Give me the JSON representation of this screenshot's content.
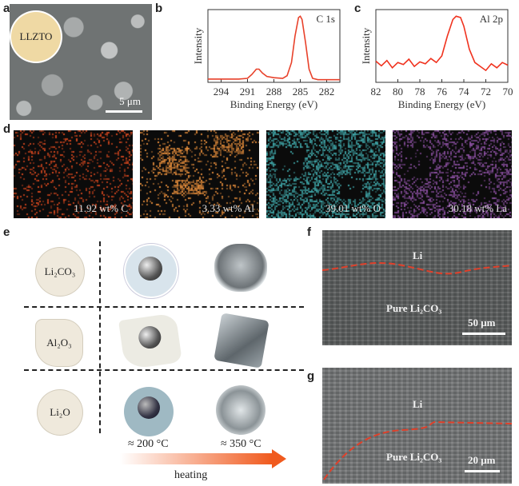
{
  "panels": {
    "a": {
      "label": "a",
      "badge": "LLZTO",
      "scale_bar": "5 μm"
    },
    "b": {
      "label": "b"
    },
    "c": {
      "label": "c"
    },
    "d": {
      "label": "d",
      "maps": [
        {
          "text": "11.92 wt% C",
          "color": "#d2461e"
        },
        {
          "text": "3.33 wt% Al",
          "color": "#e08a3a"
        },
        {
          "text": "39.01 wt% O",
          "color": "#3fa6a8"
        },
        {
          "text": "30.18 wt% La",
          "color": "#8a4fa0"
        }
      ]
    },
    "e": {
      "label": "e",
      "rows": [
        "Li₂CO₃",
        "Al₂O₃",
        "Li₂O"
      ],
      "temp_low": "≈ 200 °C",
      "temp_high": "≈ 350 °C",
      "arrow_label": "heating",
      "arrow_color": "#f05a1e"
    },
    "f": {
      "label": "f",
      "top_label": "Li",
      "bottom_label": "Pure Li₂CO₃",
      "scale_bar": "50 μm"
    },
    "g": {
      "label": "g",
      "top_label": "Li",
      "bottom_label": "Pure Li₂CO₃",
      "scale_bar": "20 μm"
    }
  },
  "chart_data": [
    {
      "type": "line",
      "panel": "b",
      "annotation": "C 1s",
      "xlabel": "Binding Energy (eV)",
      "ylabel": "Intensity",
      "xlim": [
        295.5,
        280.5
      ],
      "ylim": [
        0,
        1.1
      ],
      "xticks": [
        294,
        291,
        288,
        285,
        282
      ],
      "line_color": "#e8412a",
      "x": [
        295.5,
        292,
        291,
        290.5,
        290,
        289.7,
        289.3,
        288.8,
        288,
        287,
        286.5,
        286,
        285.6,
        285.2,
        285,
        284.8,
        284.4,
        284,
        283.6,
        283,
        280.5
      ],
      "y": [
        0.05,
        0.05,
        0.06,
        0.12,
        0.2,
        0.2,
        0.14,
        0.09,
        0.07,
        0.06,
        0.1,
        0.3,
        0.7,
        0.98,
        1.0,
        0.95,
        0.6,
        0.2,
        0.06,
        0.04,
        0.04
      ]
    },
    {
      "type": "line",
      "panel": "c",
      "annotation": "Al 2p",
      "xlabel": "Binding Energy (eV)",
      "ylabel": "Intensity",
      "xlim": [
        82,
        70
      ],
      "ylim": [
        0,
        1.1
      ],
      "xticks": [
        82,
        80,
        78,
        76,
        74,
        72,
        70
      ],
      "line_color": "#f0321e",
      "x": [
        82,
        81.5,
        81,
        80.5,
        80,
        79.5,
        79,
        78.5,
        78,
        77.5,
        77,
        76.5,
        76,
        75.5,
        75,
        74.7,
        74.3,
        74,
        73.5,
        73,
        72.5,
        72,
        71.5,
        71,
        70.5,
        70
      ],
      "y": [
        0.32,
        0.25,
        0.33,
        0.22,
        0.3,
        0.27,
        0.35,
        0.24,
        0.31,
        0.28,
        0.36,
        0.3,
        0.4,
        0.7,
        0.95,
        1.0,
        0.98,
        0.85,
        0.5,
        0.3,
        0.24,
        0.18,
        0.28,
        0.22,
        0.3,
        0.26
      ]
    }
  ]
}
